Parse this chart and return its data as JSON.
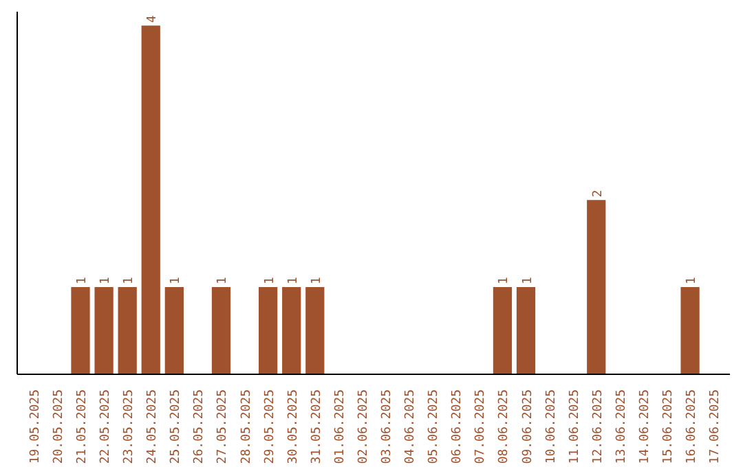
{
  "chart_data": {
    "type": "bar",
    "categories": [
      "19.05.2025",
      "20.05.2025",
      "21.05.2025",
      "22.05.2025",
      "23.05.2025",
      "24.05.2025",
      "25.05.2025",
      "26.05.2025",
      "27.05.2025",
      "28.05.2025",
      "29.05.2025",
      "30.05.2025",
      "31.05.2025",
      "01.06.2025",
      "02.06.2025",
      "03.06.2025",
      "04.06.2025",
      "05.06.2025",
      "06.06.2025",
      "07.06.2025",
      "08.06.2025",
      "09.06.2025",
      "10.06.2025",
      "11.06.2025",
      "12.06.2025",
      "13.06.2025",
      "14.06.2025",
      "15.06.2025",
      "16.06.2025",
      "17.06.2025"
    ],
    "values": [
      0,
      0,
      1,
      1,
      1,
      4,
      1,
      0,
      1,
      0,
      1,
      1,
      1,
      0,
      0,
      0,
      0,
      0,
      0,
      0,
      1,
      1,
      0,
      0,
      2,
      0,
      0,
      0,
      1,
      0
    ],
    "value_labels": [
      null,
      null,
      "1",
      "1",
      "1",
      "4",
      "1",
      null,
      "1",
      null,
      "1",
      "1",
      "1",
      null,
      null,
      null,
      null,
      null,
      null,
      null,
      "1",
      "1",
      null,
      null,
      "2",
      null,
      null,
      null,
      "1",
      null
    ],
    "color": "#a0522d",
    "tick_labels": "x"
  }
}
